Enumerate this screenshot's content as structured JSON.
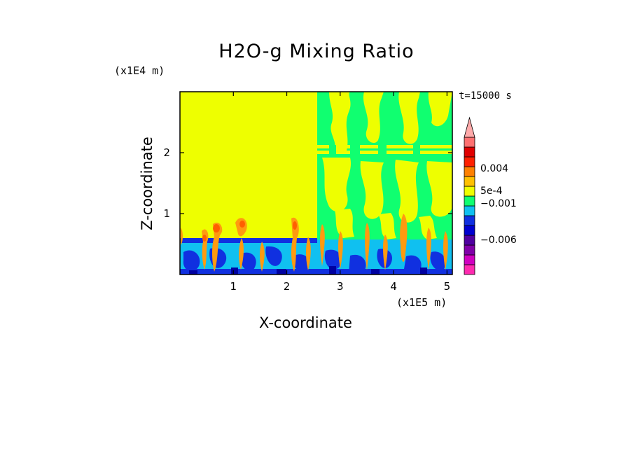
{
  "chart_data": {
    "type": "heatmap",
    "title": "H2O-g Mixing Ratio",
    "xlabel": "X-coordinate",
    "ylabel": "Z-coordinate",
    "x_unit": "(x1E5 m)",
    "y_unit": "(x1E4 m)",
    "time_label": "t=15000 s",
    "x_ticks": [
      "1",
      "2",
      "3",
      "4",
      "5"
    ],
    "x_tick_values": [
      1,
      2,
      3,
      4,
      5
    ],
    "y_ticks": [
      "1",
      "2"
    ],
    "y_tick_values": [
      1,
      2
    ],
    "xlim": [
      0,
      5.1
    ],
    "ylim": [
      0,
      3.0
    ],
    "colorbar": {
      "colors": [
        "#ff2ab0",
        "#d000c0",
        "#8000a8",
        "#5000a0",
        "#0000d0",
        "#1030e0",
        "#10c0f0",
        "#10ff70",
        "#eeff00",
        "#ffc000",
        "#ff8000",
        "#ff2000",
        "#e00000",
        "#ff7070",
        "#ffaaaa"
      ],
      "labels": [
        "0.004",
        "5e-4",
        "−0.001",
        "−0.006"
      ],
      "label_values": [
        0.004,
        0.0005,
        -0.001,
        -0.006
      ],
      "extend": "max"
    },
    "regions": [
      {
        "name": "left domain background",
        "x_range": [
          0,
          2.6
        ],
        "color": "yellow"
      },
      {
        "name": "right domain mixed field",
        "x_range": [
          2.6,
          5.1
        ],
        "colors": [
          "yellow",
          "green"
        ]
      },
      {
        "name": "low-level moist layer",
        "z_range": [
          0,
          0.55
        ],
        "colors": [
          "cyan",
          "blue"
        ]
      }
    ]
  }
}
